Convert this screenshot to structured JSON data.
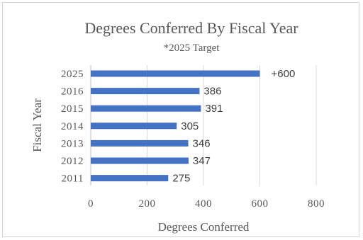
{
  "chart_data": {
    "type": "bar",
    "orientation": "horizontal",
    "title": "Degrees Conferred By Fiscal Year",
    "subtitle": "*2025 Target",
    "xlabel": "Degrees Conferred",
    "ylabel": "Fiscal Year",
    "categories": [
      "2025",
      "2016",
      "2015",
      "2014",
      "2013",
      "2012",
      "2011"
    ],
    "values": [
      600,
      386,
      391,
      305,
      346,
      347,
      275
    ],
    "data_labels": [
      "+600",
      "386",
      "391",
      "305",
      "346",
      "347",
      "275"
    ],
    "xlim": [
      0,
      800
    ],
    "x_ticks": [
      0,
      200,
      400,
      600,
      800
    ],
    "grid": "vertical",
    "legend": "none",
    "bar_color": "#4472c4"
  }
}
